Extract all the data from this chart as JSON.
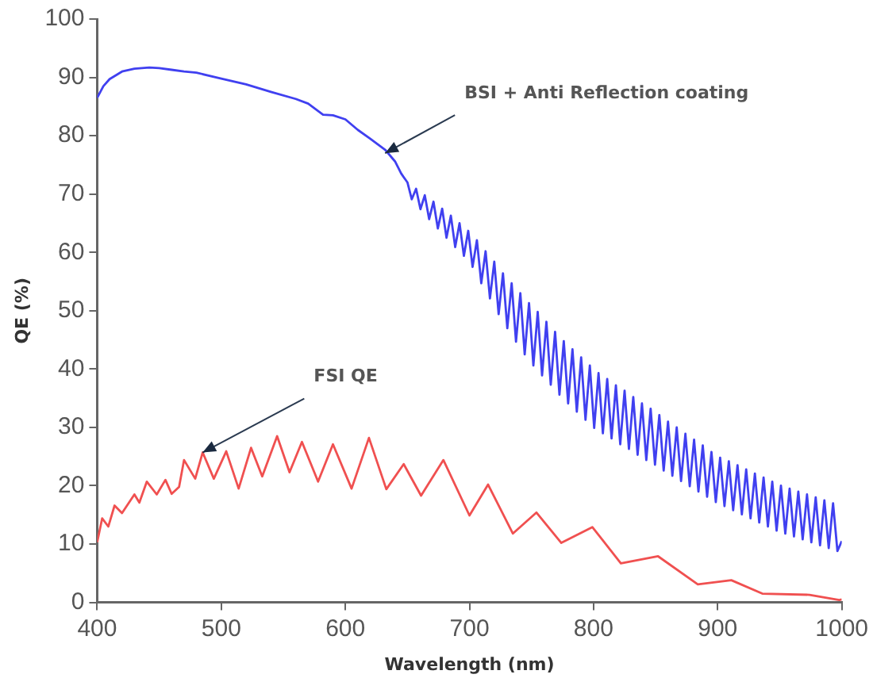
{
  "chart_data": {
    "type": "line",
    "xlabel": "Wavelength (nm)",
    "ylabel": "QE (%)",
    "xlim": [
      400,
      1000
    ],
    "xticks": [
      400,
      500,
      600,
      700,
      800,
      900,
      1000
    ],
    "ylim": [
      0,
      100
    ],
    "yticks": [
      0,
      10,
      20,
      30,
      40,
      50,
      60,
      70,
      80,
      90,
      100
    ],
    "grid": false,
    "legend": false,
    "marker": "none",
    "line_style": "solid",
    "series": [
      {
        "color": "#4040f0",
        "x": [
          400,
          405,
          410,
          420,
          430,
          442,
          450,
          460,
          470,
          480,
          500,
          520,
          540,
          560,
          570,
          582,
          590,
          600,
          610,
          620,
          632,
          640,
          645,
          650,
          653.5,
          657,
          660.5,
          664,
          667.5,
          671,
          674.5,
          678,
          681.5,
          685,
          688.5,
          692,
          695.5,
          699,
          702.5,
          706,
          709.5,
          713,
          716.5,
          720,
          723.5,
          727,
          730.5,
          734,
          737.5,
          741,
          744.5,
          748,
          751.5,
          755,
          758.5,
          762,
          765.5,
          769,
          772.5,
          776,
          779.5,
          783,
          786.5,
          790,
          793.5,
          797,
          800.5,
          804,
          807.5,
          811,
          814.5,
          818,
          821.5,
          825,
          828.5,
          832,
          835.5,
          839,
          842.5,
          846,
          849.5,
          853,
          856.5,
          860,
          863.5,
          867,
          870.5,
          874,
          877.5,
          881,
          884.5,
          888,
          891.5,
          895,
          898.5,
          902,
          905.5,
          909,
          912.5,
          916,
          919.5,
          923,
          926.5,
          930,
          933.5,
          937,
          940.5,
          944,
          947.5,
          951,
          954.5,
          958,
          961.5,
          965,
          968.5,
          972,
          975.5,
          979,
          982.5,
          986,
          989.5,
          993,
          996.5,
          1000
        ],
        "values": [
          86.5,
          88.5,
          89.7,
          91,
          91.5,
          91.7,
          91.6,
          91.3,
          91,
          90.8,
          89.8,
          88.8,
          87.5,
          86.3,
          85.5,
          83.6,
          83.5,
          82.8,
          81,
          79.5,
          77.6,
          75.6,
          73.5,
          72,
          69.1,
          70.9,
          67.4,
          69.8,
          65.7,
          68.7,
          64.1,
          67.5,
          62.5,
          66.3,
          60.9,
          65,
          59.4,
          63.7,
          57.5,
          62.1,
          54.7,
          60.2,
          52.1,
          58.4,
          49.4,
          56.4,
          47,
          54.7,
          44.7,
          53,
          42.5,
          51.3,
          40.6,
          49.8,
          38.9,
          48.1,
          37.3,
          46.4,
          35.6,
          44.8,
          34.1,
          43.4,
          32.7,
          42,
          31.3,
          40.6,
          29.9,
          39.3,
          29,
          38.3,
          28.1,
          37.2,
          27.1,
          36.3,
          26.3,
          35.2,
          25.3,
          34.1,
          24.4,
          33.2,
          23.6,
          32.1,
          22.6,
          31,
          21.7,
          30,
          20.8,
          28.9,
          19.9,
          27.9,
          19,
          26.9,
          18.1,
          25.8,
          17.2,
          24.8,
          16.5,
          24.2,
          15.8,
          23.5,
          15.1,
          22.8,
          14.4,
          22.1,
          13.7,
          21.4,
          13,
          20.7,
          12.3,
          20,
          11.8,
          19.5,
          11.3,
          19,
          10.8,
          18.5,
          10.3,
          18,
          9.8,
          17.5,
          9.3,
          17,
          8.8,
          10.5
        ]
      },
      {
        "color": "#f05050",
        "x": [
          400,
          404,
          409,
          414,
          420,
          430,
          434,
          440,
          448,
          455,
          460,
          466,
          470,
          479,
          485,
          494,
          504,
          514,
          524,
          533,
          545,
          555,
          565,
          578,
          590,
          605,
          619,
          633,
          647,
          661,
          679,
          700,
          715,
          735,
          754,
          774,
          799,
          822,
          852,
          884,
          911,
          936,
          974,
          998,
          1000
        ],
        "values": [
          10.3,
          14.4,
          13,
          16.6,
          15.3,
          18.5,
          17.1,
          20.7,
          18.5,
          21,
          18.6,
          19.8,
          24.4,
          21.2,
          25.7,
          21.2,
          25.9,
          19.5,
          26.5,
          21.6,
          28.5,
          22.3,
          27.5,
          20.7,
          27.1,
          19.5,
          28.2,
          19.4,
          23.7,
          18.3,
          24.4,
          14.9,
          20.2,
          11.8,
          15.4,
          10.2,
          12.9,
          6.7,
          7.9,
          3.1,
          3.8,
          1.5,
          1.3,
          0.4,
          0.5
        ]
      }
    ],
    "annotations": [
      {
        "text": "BSI + Anti Reflection coating",
        "x": 632,
        "y": 77
      },
      {
        "text": "FSI QE",
        "x": 485,
        "y": 25.7
      }
    ]
  }
}
